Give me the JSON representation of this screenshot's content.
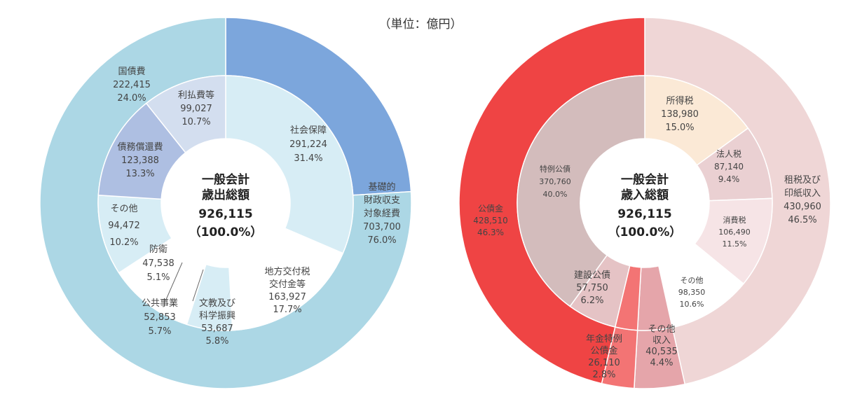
{
  "unit_label": "（単位：億円）",
  "chart_data": [
    {
      "type": "pie",
      "center": [
        "一般会計",
        "歳出総額",
        "926,115",
        "（100.0%）"
      ],
      "outer_ring": [
        {
          "name": "国債費",
          "value": 222415,
          "percent": "24.0%",
          "color": "#7ca6dc"
        },
        {
          "name": "基礎的財政収支対象経費",
          "value": 703700,
          "percent": "76.0%",
          "color": "#acd7e5"
        }
      ],
      "inner_ring": [
        {
          "name": "社会保障",
          "value": 291224,
          "value_text": "291,224",
          "percent": "31.4%",
          "color": "#d7edf5"
        },
        {
          "name": "地方交付税交付金等",
          "value": 163927,
          "value_text": "163,927",
          "percent": "17.7%",
          "color": "#ffffff"
        },
        {
          "name": "文教及び科学振興",
          "value": 53687,
          "value_text": "53,687",
          "percent": "5.8%",
          "color": "#d7edf5"
        },
        {
          "name": "公共事業",
          "value": 52853,
          "value_text": "52,853",
          "percent": "5.7%",
          "color": "#ffffff"
        },
        {
          "name": "防衛",
          "value": 47538,
          "value_text": "47,538",
          "percent": "5.1%",
          "color": "#ffffff"
        },
        {
          "name": "その他",
          "value": 94472,
          "value_text": "94,472",
          "percent": "10.2%",
          "color": "#d7edf5"
        },
        {
          "name": "債務償還費",
          "value": 123388,
          "value_text": "123,388",
          "percent": "13.3%",
          "color": "#aebfe2"
        },
        {
          "name": "利払費等",
          "value": 99027,
          "value_text": "99,027",
          "percent": "10.7%",
          "color": "#d3deef"
        }
      ],
      "labels": {
        "kokusaihi": [
          "国債費",
          "222,415",
          "24.0%"
        ],
        "kiso": [
          "基礎的",
          "財政収支",
          "対象経費",
          "703,700",
          "76.0%"
        ]
      }
    },
    {
      "type": "pie",
      "center": [
        "一般会計",
        "歳入総額",
        "926,115",
        "（100.0%）"
      ],
      "outer_ring": [
        {
          "name": "租税及び印紙収入",
          "value": 430960,
          "percent": "46.5%",
          "color": "#efd6d6"
        },
        {
          "name": "その他収入",
          "value": 40535,
          "percent": "4.4%",
          "color": "#e5a5aa"
        },
        {
          "name": "年金特例公債金",
          "value": 26110,
          "percent": "2.8%",
          "color": "#f37474"
        },
        {
          "name": "公債金",
          "value": 428510,
          "percent": "46.3%",
          "color": "#ef4444"
        }
      ],
      "inner_ring": [
        {
          "name": "所得税",
          "value": 138980,
          "value_text": "138,980",
          "percent": "15.0%",
          "color": "#fbe9d6"
        },
        {
          "name": "法人税",
          "value": 87140,
          "value_text": "87,140",
          "percent": "9.4%",
          "color": "#ead0d2"
        },
        {
          "name": "消費税",
          "value": 106490,
          "value_text": "106,490",
          "percent": "11.5%",
          "color": "#f6e4e6"
        },
        {
          "name": "その他",
          "value": 98350,
          "value_text": "98,350",
          "percent": "10.6%",
          "color": "#ffffff"
        },
        {
          "name": "その他収入",
          "value": 40535,
          "value_text": "40,535",
          "percent": "4.4%",
          "color": "#e5a5aa"
        },
        {
          "name": "年金特例公債金",
          "value": 26110,
          "value_text": "26,110",
          "percent": "2.8%",
          "color": "#f37474"
        },
        {
          "name": "建設公債",
          "value": 57750,
          "value_text": "57,750",
          "percent": "6.2%",
          "color": "#e5c3c5"
        },
        {
          "name": "特例公債",
          "value": 370760,
          "value_text": "370,760",
          "percent": "40.0%",
          "color": "#d3bcbc"
        }
      ],
      "labels": {
        "sozei": [
          "租税及び",
          "印紙収入",
          "430,960",
          "46.5%"
        ],
        "kousaikin": [
          "公債金",
          "428,510",
          "46.3%"
        ],
        "sonota_shunyu": [
          "その他",
          "収入",
          "40,535",
          "4.4%"
        ],
        "nenkin": [
          "年金特例",
          "公債金",
          "26,110",
          "2.8%"
        ]
      }
    }
  ]
}
